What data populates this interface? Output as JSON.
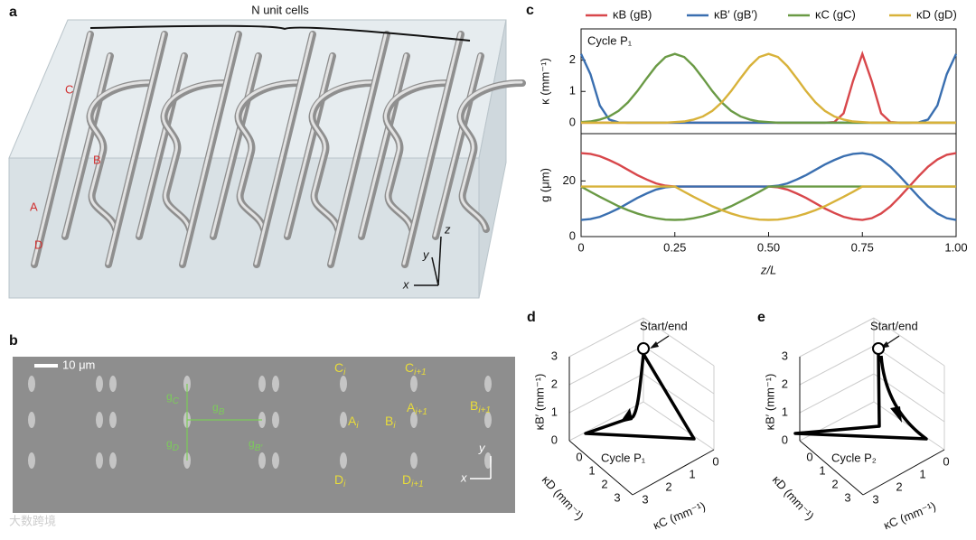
{
  "panel_labels": [
    "a",
    "b",
    "c",
    "d",
    "e"
  ],
  "panel_a": {
    "title": "N unit cells",
    "points": [
      "C",
      "B",
      "A",
      "D"
    ],
    "axes": [
      "z",
      "y",
      "x"
    ]
  },
  "panel_b": {
    "scale": "10 μm",
    "labels": [
      {
        "main": "C",
        "sub": "i"
      },
      {
        "main": "C",
        "sub": "i+1"
      },
      {
        "main": "A",
        "sub": "i"
      },
      {
        "main": "B",
        "sub": "i"
      },
      {
        "main": "A",
        "sub": "i+1"
      },
      {
        "main": "B",
        "sub": "i+1"
      },
      {
        "main": "D",
        "sub": "i"
      },
      {
        "main": "D",
        "sub": "i+1"
      }
    ],
    "gaps": [
      {
        "main": "g",
        "sub": "C"
      },
      {
        "main": "g",
        "sub": "D"
      },
      {
        "main": "g",
        "sub": "B"
      },
      {
        "main": "g",
        "sub": "B′"
      }
    ],
    "axes": [
      "y",
      "x"
    ]
  },
  "chart_data": [
    {
      "type": "line",
      "ylabel": "κ (mm⁻¹)",
      "annotation": "Cycle P₁",
      "x": [
        0,
        0.025,
        0.05,
        0.075,
        0.1,
        0.125,
        0.15,
        0.175,
        0.2,
        0.225,
        0.25,
        0.275,
        0.3,
        0.325,
        0.35,
        0.375,
        0.4,
        0.425,
        0.45,
        0.475,
        0.5,
        0.525,
        0.55,
        0.575,
        0.6,
        0.625,
        0.65,
        0.675,
        0.7,
        0.725,
        0.75,
        0.775,
        0.8,
        0.825,
        0.85,
        0.875,
        0.9,
        0.925,
        0.95,
        0.975,
        1
      ],
      "xlim": [
        0,
        1
      ],
      "ylim": [
        -0.35,
        3
      ],
      "yticks": [
        0,
        1,
        2
      ],
      "series": [
        {
          "name": "κB (gB)",
          "color": "#d8474b",
          "values": [
            0,
            0,
            0,
            0,
            0,
            0,
            0,
            0,
            0,
            0,
            0,
            0,
            0,
            0,
            0,
            0,
            0,
            0,
            0,
            0,
            0,
            0,
            0,
            0,
            0,
            0,
            0,
            0.02,
            0.3,
            1.33,
            2.2,
            1.33,
            0.3,
            0.02,
            0,
            0,
            0,
            0,
            0,
            0,
            0
          ]
        },
        {
          "name": "κB′ (gB′)",
          "color": "#3a6fb0",
          "values": [
            2.2,
            1.55,
            0.55,
            0.1,
            0.01,
            0,
            0,
            0,
            0,
            0,
            0,
            0,
            0,
            0,
            0,
            0,
            0,
            0,
            0,
            0,
            0,
            0,
            0,
            0,
            0,
            0,
            0,
            0,
            0,
            0,
            0,
            0,
            0,
            0,
            0,
            0,
            0.01,
            0.1,
            0.55,
            1.55,
            2.2
          ]
        },
        {
          "name": "κC (gC)",
          "color": "#6a9a45",
          "values": [
            0.02,
            0.04,
            0.1,
            0.2,
            0.38,
            0.65,
            1.01,
            1.42,
            1.81,
            2.1,
            2.2,
            2.1,
            1.81,
            1.42,
            1.01,
            0.65,
            0.38,
            0.2,
            0.1,
            0.04,
            0.02,
            0,
            0,
            0,
            0,
            0,
            0,
            0,
            0,
            0,
            0,
            0,
            0,
            0,
            0,
            0,
            0,
            0,
            0,
            0,
            0
          ]
        },
        {
          "name": "κD (gD)",
          "color": "#d8b23a",
          "values": [
            0,
            0,
            0,
            0,
            0,
            0,
            0,
            0,
            0,
            0,
            0.02,
            0.04,
            0.1,
            0.2,
            0.38,
            0.65,
            1.01,
            1.42,
            1.81,
            2.1,
            2.2,
            2.1,
            1.81,
            1.42,
            1.01,
            0.65,
            0.38,
            0.2,
            0.1,
            0.04,
            0.02,
            0,
            0,
            0,
            0,
            0,
            0,
            0,
            0,
            0,
            0
          ]
        }
      ]
    },
    {
      "type": "line",
      "ylabel": "g (μm)",
      "xlabel": "z/L",
      "x": [
        0,
        0.025,
        0.05,
        0.075,
        0.1,
        0.125,
        0.15,
        0.175,
        0.2,
        0.225,
        0.25,
        0.275,
        0.3,
        0.325,
        0.35,
        0.375,
        0.4,
        0.425,
        0.45,
        0.475,
        0.5,
        0.525,
        0.55,
        0.575,
        0.6,
        0.625,
        0.65,
        0.675,
        0.7,
        0.725,
        0.75,
        0.775,
        0.8,
        0.825,
        0.85,
        0.875,
        0.9,
        0.925,
        0.95,
        0.975,
        1
      ],
      "xlim": [
        0,
        1
      ],
      "xticks": [
        0,
        0.25,
        {
          "value": 0.5,
          "label": "0.50"
        },
        0.75,
        {
          "value": 1,
          "label": "1.00"
        }
      ],
      "ylim": [
        0,
        37
      ],
      "yticks": [
        0,
        20
      ],
      "series": [
        {
          "color": "#d8474b",
          "values": [
            30,
            29.7,
            28.9,
            27.5,
            25.9,
            24,
            22.1,
            20.5,
            19.1,
            18.3,
            18,
            18,
            18,
            18,
            18,
            18,
            18,
            18,
            18,
            18,
            18,
            17.7,
            16.9,
            15.5,
            13.9,
            12,
            10.1,
            8.5,
            7.1,
            6.3,
            6,
            6.6,
            8.3,
            10.9,
            14.3,
            18,
            21.7,
            25.1,
            27.7,
            29.4,
            30
          ]
        },
        {
          "color": "#3a6fb0",
          "values": [
            6,
            6.3,
            7.1,
            8.5,
            10.1,
            12,
            13.9,
            15.5,
            16.9,
            17.7,
            18,
            18,
            18,
            18,
            18,
            18,
            18,
            18,
            18,
            18,
            18,
            18.3,
            19.1,
            20.5,
            22.1,
            24,
            25.9,
            27.5,
            28.9,
            29.7,
            30,
            29.4,
            27.7,
            25.1,
            21.7,
            18,
            14.3,
            10.9,
            8.3,
            6.6,
            6
          ]
        },
        {
          "color": "#6a9a45",
          "values": [
            18,
            16.1,
            14.3,
            12.6,
            10.9,
            9.5,
            8.3,
            7.3,
            6.6,
            6.1,
            6,
            6.1,
            6.6,
            7.3,
            8.3,
            9.5,
            10.9,
            12.6,
            14.3,
            16.1,
            18,
            18,
            18,
            18,
            18,
            18,
            18,
            18,
            18,
            18,
            18,
            18,
            18,
            18,
            18,
            18,
            18,
            18,
            18,
            18,
            18
          ]
        },
        {
          "color": "#d8b23a",
          "values": [
            18,
            18,
            18,
            18,
            18,
            18,
            18,
            18,
            18,
            18,
            18,
            16.1,
            14.3,
            12.6,
            10.9,
            9.5,
            8.3,
            7.3,
            6.6,
            6.1,
            6,
            6.1,
            6.6,
            7.3,
            8.3,
            9.5,
            10.9,
            12.6,
            14.3,
            16.1,
            18,
            18,
            18,
            18,
            18,
            18,
            18,
            18,
            18,
            18,
            18
          ]
        }
      ]
    }
  ],
  "panel_d": {
    "annotation": "Start/end",
    "cycle": "Cycle P₁",
    "axis_vertical": "κB′ (mm⁻¹)",
    "axis_left": "κD (mm⁻¹)",
    "axis_right": "κC (mm⁻¹)",
    "vertical_ticks": [
      0,
      1,
      2,
      3
    ],
    "left_ticks": [
      0,
      1,
      2,
      3
    ],
    "right_ticks": [
      0,
      1,
      2,
      3
    ]
  },
  "panel_e": {
    "annotation": "Start/end",
    "cycle": "Cycle P₂",
    "axis_vertical": "κB′ (mm⁻¹)",
    "axis_left": "κD (mm⁻¹)",
    "axis_right": "κC (mm⁻¹)",
    "vertical_ticks": [
      0,
      1,
      2,
      3
    ],
    "left_ticks": [
      0,
      1,
      2,
      3
    ],
    "right_ticks": [
      0,
      1,
      2,
      3
    ]
  },
  "watermark": "大数跨境"
}
